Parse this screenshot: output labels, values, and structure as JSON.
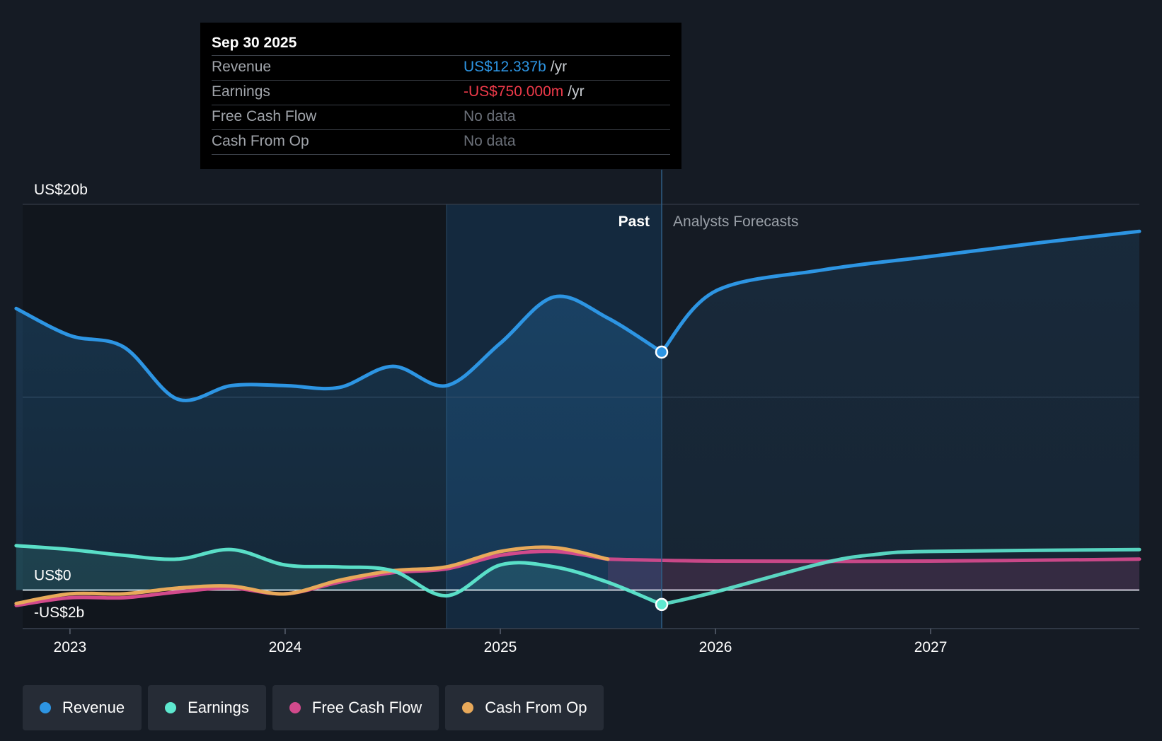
{
  "tooltip": {
    "date": "Sep 30 2025",
    "rows": [
      {
        "label": "Revenue",
        "value": "US$12.337b",
        "unit": "/yr",
        "color": "#2d95e3"
      },
      {
        "label": "Earnings",
        "value": "-US$750.000m",
        "unit": "/yr",
        "color": "#ee3a4a"
      },
      {
        "label": "Free Cash Flow",
        "value": "No data",
        "unit": "",
        "color": "#6b7079"
      },
      {
        "label": "Cash From Op",
        "value": "No data",
        "unit": "",
        "color": "#6b7079"
      }
    ]
  },
  "legend": [
    {
      "label": "Revenue",
      "color": "#2d95e3"
    },
    {
      "label": "Earnings",
      "color": "#5ee8cf"
    },
    {
      "label": "Free Cash Flow",
      "color": "#d24a8c"
    },
    {
      "label": "Cash From Op",
      "color": "#e8a95a"
    }
  ],
  "chart_data": {
    "type": "line",
    "y_unit": "US$ billions",
    "ylim": [
      -2,
      20
    ],
    "y_ticks": [
      {
        "value": 20,
        "label": "US$20b"
      },
      {
        "value": 10,
        "label": ""
      },
      {
        "value": 0,
        "label": "US$0"
      },
      {
        "value": -2,
        "label": "-US$2b"
      }
    ],
    "xlim": [
      2022.78,
      2027.97
    ],
    "x_ticks": [
      {
        "value": 2023,
        "label": "2023"
      },
      {
        "value": 2024,
        "label": "2024"
      },
      {
        "value": 2025,
        "label": "2025"
      },
      {
        "value": 2026,
        "label": "2026"
      },
      {
        "value": 2027,
        "label": "2027"
      }
    ],
    "past_label": "Past",
    "forecast_label": "Analysts Forecasts",
    "divider_x": 2025.75,
    "highlight_start_x": 2024.75,
    "series": [
      {
        "name": "Revenue",
        "color": "#2d95e3",
        "points": [
          [
            2022.75,
            14.6
          ],
          [
            2023.0,
            13.2
          ],
          [
            2023.25,
            12.6
          ],
          [
            2023.5,
            9.9
          ],
          [
            2023.75,
            10.6
          ],
          [
            2024.0,
            10.6
          ],
          [
            2024.25,
            10.5
          ],
          [
            2024.5,
            11.6
          ],
          [
            2024.75,
            10.6
          ],
          [
            2025.0,
            12.8
          ],
          [
            2025.25,
            15.2
          ],
          [
            2025.5,
            14.1
          ],
          [
            2025.75,
            12.337
          ]
        ],
        "forecast": [
          [
            2025.75,
            12.337
          ],
          [
            2026.0,
            15.5
          ],
          [
            2026.5,
            16.6
          ],
          [
            2027.0,
            17.3
          ],
          [
            2027.5,
            18.0
          ],
          [
            2027.97,
            18.6
          ]
        ],
        "marker": [
          2025.75,
          12.337
        ]
      },
      {
        "name": "Earnings",
        "color": "#5ee8cf",
        "points": [
          [
            2022.75,
            2.3
          ],
          [
            2023.0,
            2.1
          ],
          [
            2023.25,
            1.8
          ],
          [
            2023.5,
            1.6
          ],
          [
            2023.75,
            2.1
          ],
          [
            2024.0,
            1.3
          ],
          [
            2024.25,
            1.2
          ],
          [
            2024.5,
            1.0
          ],
          [
            2024.75,
            -0.3
          ],
          [
            2025.0,
            1.3
          ],
          [
            2025.25,
            1.2
          ],
          [
            2025.5,
            0.4
          ],
          [
            2025.75,
            -0.75
          ]
        ],
        "forecast": [
          [
            2025.75,
            -0.75
          ],
          [
            2026.0,
            -0.1
          ],
          [
            2026.5,
            1.4
          ],
          [
            2026.75,
            1.85
          ],
          [
            2027.0,
            2.0
          ],
          [
            2027.97,
            2.1
          ]
        ],
        "marker": [
          2025.75,
          -0.75
        ]
      },
      {
        "name": "Free Cash Flow",
        "color": "#d24a8c",
        "points": [
          [
            2022.75,
            -0.8
          ],
          [
            2023.0,
            -0.4
          ],
          [
            2023.25,
            -0.4
          ],
          [
            2023.5,
            -0.1
          ],
          [
            2023.75,
            0.1
          ],
          [
            2024.0,
            -0.2
          ],
          [
            2024.25,
            0.4
          ],
          [
            2024.5,
            0.9
          ],
          [
            2024.75,
            1.1
          ],
          [
            2025.0,
            1.8
          ],
          [
            2025.25,
            2.0
          ],
          [
            2025.5,
            1.6
          ]
        ],
        "forecast": [
          [
            2025.5,
            1.6
          ],
          [
            2026.0,
            1.5
          ],
          [
            2027.0,
            1.5
          ],
          [
            2027.97,
            1.6
          ]
        ]
      },
      {
        "name": "Cash From Op",
        "color": "#e8a95a",
        "points": [
          [
            2022.75,
            -0.7
          ],
          [
            2023.0,
            -0.2
          ],
          [
            2023.25,
            -0.2
          ],
          [
            2023.5,
            0.1
          ],
          [
            2023.75,
            0.2
          ],
          [
            2024.0,
            -0.2
          ],
          [
            2024.25,
            0.5
          ],
          [
            2024.5,
            1.0
          ],
          [
            2024.75,
            1.2
          ],
          [
            2025.0,
            2.0
          ],
          [
            2025.25,
            2.2
          ],
          [
            2025.5,
            1.6
          ]
        ],
        "forecast": []
      }
    ]
  }
}
